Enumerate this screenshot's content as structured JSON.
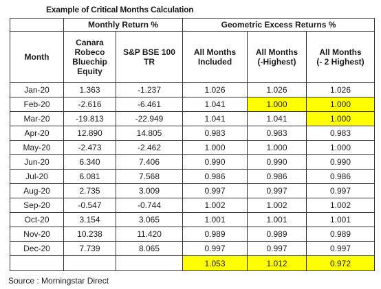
{
  "title": "Example of Critical Months Calculation",
  "headers": {
    "group_monthly": "Monthly Return %",
    "group_geo": "Geometric Excess Returns %",
    "month": "Month",
    "canara": [
      "Canara",
      "Robeco",
      "Bluechip",
      "Equity"
    ],
    "sp": [
      "S&P BSE 100",
      "TR"
    ],
    "all": [
      "All Months",
      "Included"
    ],
    "highest": [
      "All Months",
      "(-Highest)"
    ],
    "two_highest": [
      "All Months",
      "(- 2 Highest)"
    ]
  },
  "rows": [
    {
      "month": "Jan-20",
      "canara": "1.363",
      "sp": "-1.237",
      "all": "1.026",
      "h": "1.026",
      "h2": "1.026"
    },
    {
      "month": "Feb-20",
      "canara": "-2.616",
      "sp": "-6.461",
      "all": "1.041",
      "h": "1.000",
      "h2": "1.000"
    },
    {
      "month": "Mar-20",
      "canara": "-19.813",
      "sp": "-22.949",
      "all": "1.041",
      "h": "1.041",
      "h2": "1.000"
    },
    {
      "month": "Apr-20",
      "canara": "12.890",
      "sp": "14.805",
      "all": "0.983",
      "h": "0.983",
      "h2": "0.983"
    },
    {
      "month": "May-20",
      "canara": "-2.473",
      "sp": "-2.462",
      "all": "1.000",
      "h": "1.000",
      "h2": "1.000"
    },
    {
      "month": "Jun-20",
      "canara": "6.340",
      "sp": "7.406",
      "all": "0.990",
      "h": "0.990",
      "h2": "0.990"
    },
    {
      "month": "Jul-20",
      "canara": "6.081",
      "sp": "7.568",
      "all": "0.986",
      "h": "0.986",
      "h2": "0.986"
    },
    {
      "month": "Aug-20",
      "canara": "2.735",
      "sp": "3.009",
      "all": "0.997",
      "h": "0.997",
      "h2": "0.997"
    },
    {
      "month": "Sep-20",
      "canara": "-0.547",
      "sp": "-0.744",
      "all": "1.002",
      "h": "1.002",
      "h2": "1.002"
    },
    {
      "month": "Oct-20",
      "canara": "3.154",
      "sp": "3.065",
      "all": "1.001",
      "h": "1.001",
      "h2": "1.001"
    },
    {
      "month": "Nov-20",
      "canara": "10.238",
      "sp": "11.420",
      "all": "0.989",
      "h": "0.989",
      "h2": "0.989"
    },
    {
      "month": "Dec-20",
      "canara": "7.739",
      "sp": "8.065",
      "all": "0.997",
      "h": "0.997",
      "h2": "0.997"
    }
  ],
  "totals": {
    "all": "1.053",
    "h": "1.012",
    "h2": "0.972"
  },
  "highlight_color": "#ffff00",
  "source": "Source : Morningstar Direct"
}
